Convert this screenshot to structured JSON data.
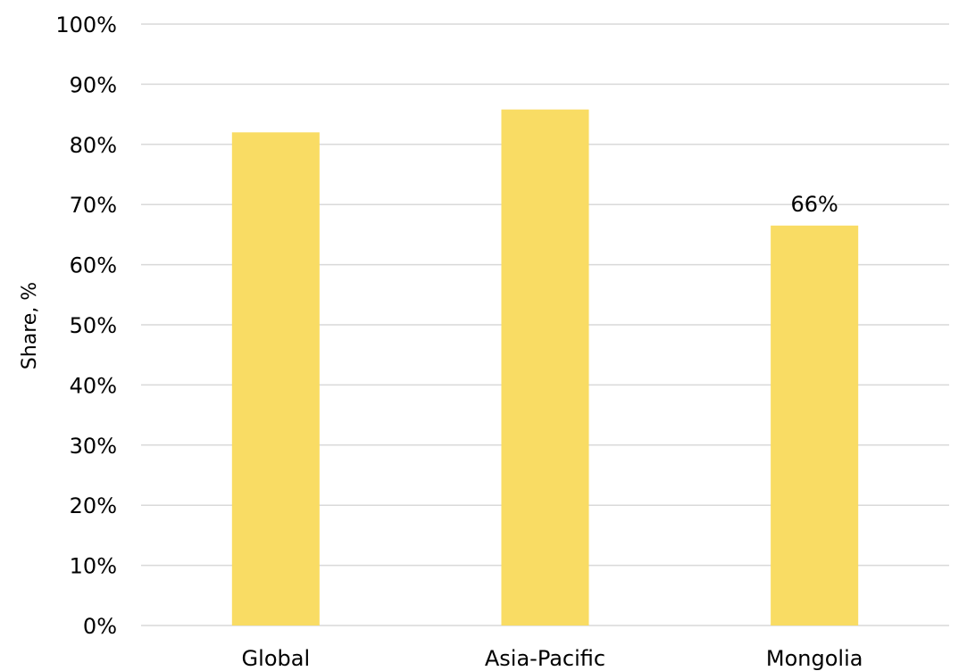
{
  "chart_data": {
    "type": "bar",
    "title": "",
    "xlabel": "",
    "ylabel": "Share, %",
    "categories": [
      "Global",
      "Asia-Pacific",
      "Mongolia"
    ],
    "values": [
      0.82,
      0.858,
      0.665
    ],
    "data_labels": [
      "",
      "",
      "66%"
    ],
    "ylim": [
      0,
      1
    ],
    "yticks": [
      0,
      0.1,
      0.2,
      0.3,
      0.4,
      0.5,
      0.6,
      0.7,
      0.8,
      0.9,
      1.0
    ],
    "ytick_labels": [
      "0%",
      "10%",
      "20%",
      "30%",
      "40%",
      "50%",
      "60%",
      "70%",
      "80%",
      "90%",
      "100%"
    ],
    "grid": true,
    "legend": "none",
    "colors": {
      "bar": "#f9dc64",
      "grid": "#d9d9d9"
    }
  }
}
